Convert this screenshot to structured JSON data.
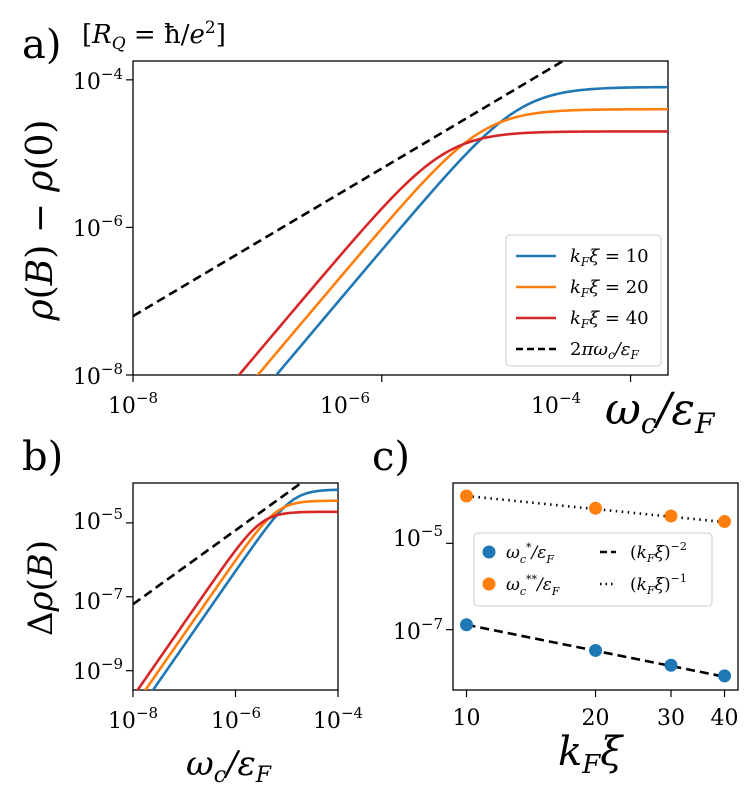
{
  "chart_data": [
    {
      "panel": "a)",
      "type": "line",
      "scale": "log-log",
      "annotation": "[R_Q = ħ/e²]",
      "xlabel": "ω_c/ε_F",
      "ylabel": "ρ(B) − ρ(0)",
      "xlim": [
        1e-08,
        0.0002
      ],
      "ylim": [
        1e-08,
        0.00018
      ],
      "x_ticks": [
        1e-08,
        1e-06,
        0.0001
      ],
      "y_ticks": [
        1e-08,
        1e-06,
        0.0001
      ],
      "legend_position": "lower-right",
      "series": [
        {
          "name": "k_Fξ = 10",
          "color": "#1f77b4",
          "saturation": 8e-05,
          "crossover": 1.27e-05
        },
        {
          "name": "k_Fξ = 20",
          "color": "#ff7f0e",
          "saturation": 4e-05,
          "crossover": 6.37e-06
        },
        {
          "name": "k_Fξ = 40",
          "color": "#d62728",
          "saturation": 2e-05,
          "crossover": 3.18e-06
        },
        {
          "name": "2πω_c/ε_F",
          "color": "#000000",
          "style": "dashed",
          "slope": 6.283
        }
      ]
    },
    {
      "panel": "b)",
      "type": "line",
      "scale": "log-log",
      "xlabel": "ω_c/ε_F",
      "ylabel": "Δρ(B)",
      "xlim": [
        1e-08,
        0.0001
      ],
      "ylim": [
        3e-10,
        0.00012
      ],
      "x_ticks": [
        1e-08,
        1e-06,
        0.0001
      ],
      "y_ticks": [
        1e-09,
        1e-07,
        1e-05
      ],
      "series": [
        {
          "name": "k_Fξ = 10",
          "color": "#1f77b4",
          "saturation": 8e-05,
          "crossover": 1.27e-05
        },
        {
          "name": "k_Fξ = 20",
          "color": "#ff7f0e",
          "saturation": 4e-05,
          "crossover": 6.37e-06
        },
        {
          "name": "k_Fξ = 40",
          "color": "#d62728",
          "saturation": 2e-05,
          "crossover": 3.18e-06
        },
        {
          "name": "2πω_c/ε_F",
          "color": "#000000",
          "style": "dashed",
          "slope": 6.283
        }
      ]
    },
    {
      "panel": "c)",
      "type": "scatter",
      "scale": "log-log",
      "xlabel": "k_Fξ",
      "xlim": [
        9.3,
        43
      ],
      "ylim": [
        4e-09,
        0.00025
      ],
      "x_ticks": [
        10,
        20,
        30,
        40
      ],
      "y_ticks": [
        1e-07,
        1e-05
      ],
      "legend_position": "center",
      "points": [
        {
          "name": "ω_c*/ε_F",
          "color": "#1f77b4",
          "x": [
            10,
            20,
            30,
            40
          ],
          "y": [
            1.3e-07,
            3.3e-08,
            1.5e-08,
            8.5e-09
          ]
        },
        {
          "name": "ω_c**/ε_F",
          "color": "#ff7f0e",
          "x": [
            10,
            20,
            30,
            40
          ],
          "y": [
            0.000125,
            6.5e-05,
            4.3e-05,
            3.2e-05
          ]
        }
      ],
      "fits": [
        {
          "name": "(k_Fξ)^−2",
          "style": "dashed",
          "x": [
            10,
            40
          ],
          "y": [
            1.3e-07,
            8.1e-09
          ]
        },
        {
          "name": "(k_Fξ)^−1",
          "style": "dotted",
          "x": [
            10,
            40
          ],
          "y": [
            0.000125,
            3.1e-05
          ]
        }
      ]
    }
  ],
  "labels": {
    "panel_a": "a)",
    "panel_b": "b)",
    "panel_c": "c)",
    "annotation_a": "[R_Q = ħ/e²]",
    "a_xlabel": "ω_c/ε_F",
    "a_ylabel": "ρ(B) − ρ(0)",
    "b_xlabel": "ω_c/ε_F",
    "b_ylabel": "Δρ(B)",
    "c_xlabel": "k_Fξ",
    "legend_a": [
      "k_Fξ = 10",
      "k_Fξ = 20",
      "k_Fξ = 40",
      "2πω_c/ε_F"
    ],
    "legend_c": [
      "ω_c*/ε_F",
      "(k_Fξ)^−2",
      "ω_c**/ε_F",
      "(k_Fξ)^−1"
    ],
    "tick_exp": {
      "m8": "−8",
      "m6": "−6",
      "m4": "−4",
      "m9": "−9",
      "m7": "−7",
      "m5": "−5"
    },
    "tick_base": "10",
    "c_xticks": [
      "10",
      "20",
      "30",
      "40"
    ]
  }
}
